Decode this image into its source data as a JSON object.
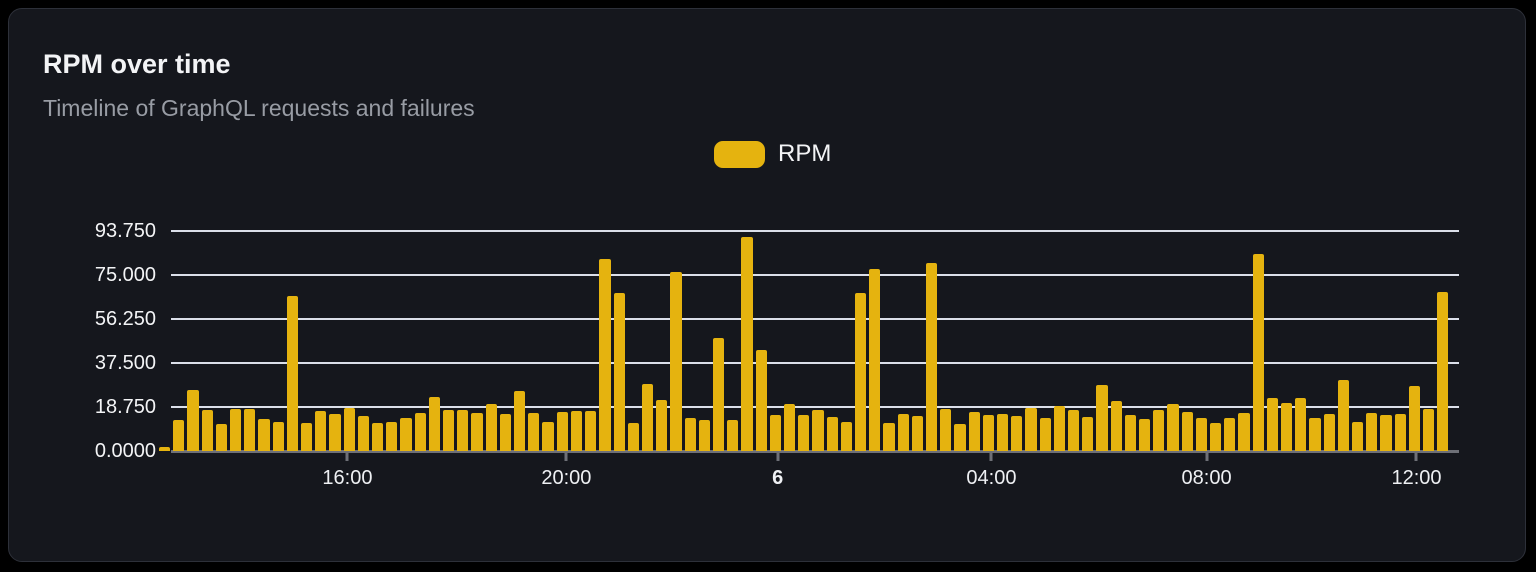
{
  "card": {
    "title": "RPM over time",
    "subtitle": "Timeline of GraphQL requests and failures"
  },
  "legend": {
    "series_label": "RPM"
  },
  "colors": {
    "accent": "#e5b30f",
    "card_background": "#15171d",
    "card_border": "#2d3039",
    "gridline": "#dbdfe9",
    "axis": "#6e7077",
    "text_primary": "#f3f4f6",
    "text_secondary": "#989ca4"
  },
  "chart_data": {
    "type": "bar",
    "title": "RPM over time",
    "subtitle": "Timeline of GraphQL requests and failures",
    "ylabel": "RPM",
    "ylim": [
      0,
      93.75
    ],
    "grid": "horizontal",
    "legend_position": "top-center",
    "y_ticks": [
      "93.750",
      "75.000",
      "56.250",
      "37.500",
      "18.750",
      "0.0000"
    ],
    "x_ticks": [
      {
        "label": "16:00",
        "pct": 13.7,
        "bold": false
      },
      {
        "label": "20:00",
        "pct": 30.7,
        "bold": false
      },
      {
        "label": "6",
        "pct": 47.1,
        "bold": true
      },
      {
        "label": "04:00",
        "pct": 63.7,
        "bold": false
      },
      {
        "label": "08:00",
        "pct": 80.4,
        "bold": false
      },
      {
        "label": "12:00",
        "pct": 96.7,
        "bold": false
      }
    ],
    "series": [
      {
        "name": "RPM",
        "color": "#e5b30f",
        "values": [
          1.8,
          13,
          26,
          17.3,
          11.4,
          18,
          18,
          13.5,
          12.5,
          66,
          12.1,
          17,
          15.9,
          18.5,
          14.9,
          12.1,
          12.5,
          14.2,
          16.3,
          23.1,
          17.3,
          17.3,
          16.3,
          20.2,
          15.9,
          25.6,
          16.1,
          12.5,
          16.8,
          17,
          17,
          82,
          67.5,
          12.1,
          28.4,
          21.6,
          76.3,
          13.9,
          13.1,
          48.3,
          13.1,
          91.3,
          42.9,
          15.2,
          19.9,
          15.3,
          17.3,
          14.5,
          12.4,
          67.2,
          77.7,
          12.1,
          15.6,
          14.9,
          80.3,
          17.8,
          11.7,
          16.6,
          15.2,
          15.6,
          14.9,
          18.2,
          14.2,
          19.2,
          17.5,
          14.6,
          28.1,
          21.3,
          15.3,
          13.5,
          17.3,
          20.2,
          16.6,
          13.9,
          11.8,
          14.2,
          16.3,
          83.8,
          22.4,
          20.6,
          22.4,
          13.9,
          15.6,
          30.3,
          12.5,
          16.3,
          15.3,
          15.6,
          27.7,
          18,
          67.8
        ]
      }
    ]
  }
}
